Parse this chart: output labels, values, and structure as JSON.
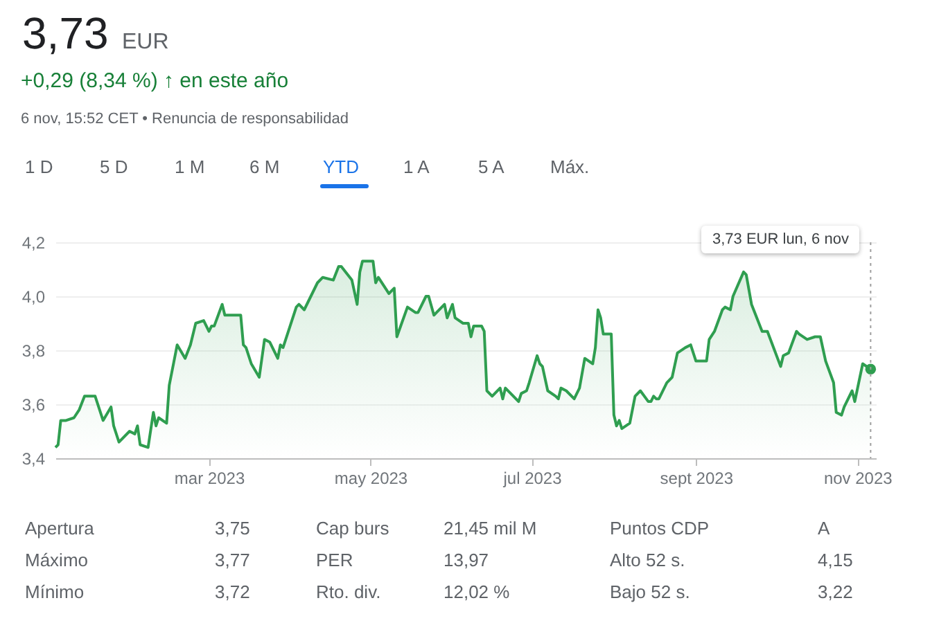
{
  "chart_data": {
    "type": "area",
    "title": "3,73",
    "x": [
      "2023-01-02",
      "2023-01-03",
      "2023-01-04",
      "2023-01-06",
      "2023-01-09",
      "2023-01-11",
      "2023-01-13",
      "2023-01-17",
      "2023-01-20",
      "2023-01-23",
      "2023-01-24",
      "2023-01-26",
      "2023-01-30",
      "2023-02-01",
      "2023-02-02",
      "2023-02-03",
      "2023-02-06",
      "2023-02-08",
      "2023-02-09",
      "2023-02-10",
      "2023-02-13",
      "2023-02-14",
      "2023-02-17",
      "2023-02-20",
      "2023-02-22",
      "2023-02-24",
      "2023-02-27",
      "2023-03-01",
      "2023-03-02",
      "2023-03-03",
      "2023-03-06",
      "2023-03-07",
      "2023-03-13",
      "2023-03-14",
      "2023-03-15",
      "2023-03-17",
      "2023-03-20",
      "2023-03-22",
      "2023-03-24",
      "2023-03-27",
      "2023-03-28",
      "2023-03-29",
      "2023-04-03",
      "2023-04-04",
      "2023-04-06",
      "2023-04-11",
      "2023-04-13",
      "2023-04-17",
      "2023-04-19",
      "2023-04-20",
      "2023-04-24",
      "2023-04-26",
      "2023-04-27",
      "2023-04-28",
      "2023-05-02",
      "2023-05-03",
      "2023-05-04",
      "2023-05-08",
      "2023-05-09",
      "2023-05-10",
      "2023-05-11",
      "2023-05-15",
      "2023-05-18",
      "2023-05-19",
      "2023-05-22",
      "2023-05-23",
      "2023-05-25",
      "2023-05-26",
      "2023-05-29",
      "2023-05-30",
      "2023-06-01",
      "2023-06-02",
      "2023-06-05",
      "2023-06-07",
      "2023-06-08",
      "2023-06-09",
      "2023-06-12",
      "2023-06-13",
      "2023-06-14",
      "2023-06-16",
      "2023-06-19",
      "2023-06-20",
      "2023-06-21",
      "2023-06-23",
      "2023-06-26",
      "2023-06-27",
      "2023-06-29",
      "2023-06-30",
      "2023-07-03",
      "2023-07-04",
      "2023-07-05",
      "2023-07-07",
      "2023-07-10",
      "2023-07-11",
      "2023-07-12",
      "2023-07-14",
      "2023-07-17",
      "2023-07-19",
      "2023-07-21",
      "2023-07-24",
      "2023-07-25",
      "2023-07-26",
      "2023-07-27",
      "2023-07-28",
      "2023-07-31",
      "2023-08-01",
      "2023-08-02",
      "2023-08-03",
      "2023-08-04",
      "2023-08-07",
      "2023-08-09",
      "2023-08-11",
      "2023-08-14",
      "2023-08-15",
      "2023-08-16",
      "2023-08-17",
      "2023-08-18",
      "2023-08-21",
      "2023-08-23",
      "2023-08-25",
      "2023-08-28",
      "2023-08-30",
      "2023-09-01",
      "2023-09-05",
      "2023-09-06",
      "2023-09-08",
      "2023-09-11",
      "2023-09-12",
      "2023-09-14",
      "2023-09-15",
      "2023-09-19",
      "2023-09-20",
      "2023-09-22",
      "2023-09-26",
      "2023-09-28",
      "2023-10-03",
      "2023-10-04",
      "2023-10-06",
      "2023-10-09",
      "2023-10-10",
      "2023-10-13",
      "2023-10-16",
      "2023-10-18",
      "2023-10-20",
      "2023-10-23",
      "2023-10-24",
      "2023-10-26",
      "2023-10-27",
      "2023-10-30",
      "2023-10-31",
      "2023-11-03",
      "2023-11-06"
    ],
    "series": [
      {
        "color": "#2f9e50",
        "values": [
          3.44,
          3.45,
          3.54,
          3.54,
          3.55,
          3.58,
          3.63,
          3.63,
          3.54,
          3.59,
          3.52,
          3.46,
          3.5,
          3.49,
          3.52,
          3.45,
          3.44,
          3.57,
          3.52,
          3.55,
          3.53,
          3.67,
          3.82,
          3.77,
          3.82,
          3.9,
          3.91,
          3.87,
          3.89,
          3.89,
          3.97,
          3.93,
          3.93,
          3.82,
          3.81,
          3.75,
          3.7,
          3.84,
          3.83,
          3.77,
          3.82,
          3.81,
          3.96,
          3.97,
          3.95,
          4.05,
          4.07,
          4.06,
          4.11,
          4.11,
          4.06,
          3.97,
          4.09,
          4.13,
          4.13,
          4.05,
          4.07,
          4.01,
          4.02,
          4.03,
          3.85,
          3.96,
          3.94,
          3.94,
          4.0,
          4.0,
          3.93,
          3.94,
          3.97,
          3.92,
          3.97,
          3.92,
          3.9,
          3.9,
          3.85,
          3.89,
          3.89,
          3.87,
          3.65,
          3.63,
          3.66,
          3.62,
          3.66,
          3.64,
          3.61,
          3.64,
          3.65,
          3.68,
          3.78,
          3.75,
          3.74,
          3.65,
          3.63,
          3.62,
          3.66,
          3.65,
          3.62,
          3.66,
          3.77,
          3.75,
          3.81,
          3.95,
          3.92,
          3.86,
          3.86,
          3.56,
          3.52,
          3.54,
          3.51,
          3.53,
          3.63,
          3.65,
          3.61,
          3.61,
          3.63,
          3.62,
          3.62,
          3.68,
          3.7,
          3.79,
          3.81,
          3.82,
          3.76,
          3.76,
          3.84,
          3.87,
          3.95,
          3.96,
          3.95,
          4.0,
          4.09,
          4.08,
          3.97,
          3.87,
          3.87,
          3.74,
          3.78,
          3.79,
          3.87,
          3.86,
          3.84,
          3.85,
          3.85,
          3.76,
          3.68,
          3.57,
          3.56,
          3.59,
          3.65,
          3.61,
          3.75,
          3.73
        ]
      }
    ],
    "xlim": [
      "2023-01-02",
      "2023-11-08"
    ],
    "xticks": [
      {
        "value": "2023-03-01",
        "label": "mar 2023"
      },
      {
        "value": "2023-05-01",
        "label": "may 2023"
      },
      {
        "value": "2023-07-01",
        "label": "jul 2023"
      },
      {
        "value": "2023-09-01",
        "label": "sept 2023"
      },
      {
        "value": "2023-11-01",
        "label": "nov 2023"
      }
    ],
    "ylim": [
      3.4,
      4.2
    ],
    "yticks": [
      {
        "value": 3.4,
        "label": "3,4"
      },
      {
        "value": 3.6,
        "label": "3,6"
      },
      {
        "value": 3.8,
        "label": "3,8"
      },
      {
        "value": 4.0,
        "label": "4,0"
      },
      {
        "value": 4.2,
        "label": "4,2"
      }
    ],
    "grid": "y",
    "ref_lines": [
      {
        "axis": "x",
        "value": "2023-11-06",
        "line_style": "dotted",
        "color": "#9e9e9e"
      }
    ],
    "annotations": [
      "3,73 EUR  lun, 6 nov",
      "EUR",
      "+0,29 (8,34 %) ↑ en este año",
      "6 nov, 15:52 CET • Renuncia de responsabilidad",
      "1 D",
      "5 D",
      "1 M",
      "6 M",
      "YTD",
      "1 A",
      "5 A",
      "Máx.",
      "Apertura",
      "3,75",
      "Cap burs",
      "21,45 mil M",
      "Puntos CDP",
      "A",
      "Máximo",
      "3,77",
      "PER",
      "13,97",
      "Alto 52 s.",
      "4,15",
      "Mínimo",
      "3,72",
      "Rto. div.",
      "12,02 %",
      "Bajo 52 s.",
      "3,22"
    ]
  }
}
